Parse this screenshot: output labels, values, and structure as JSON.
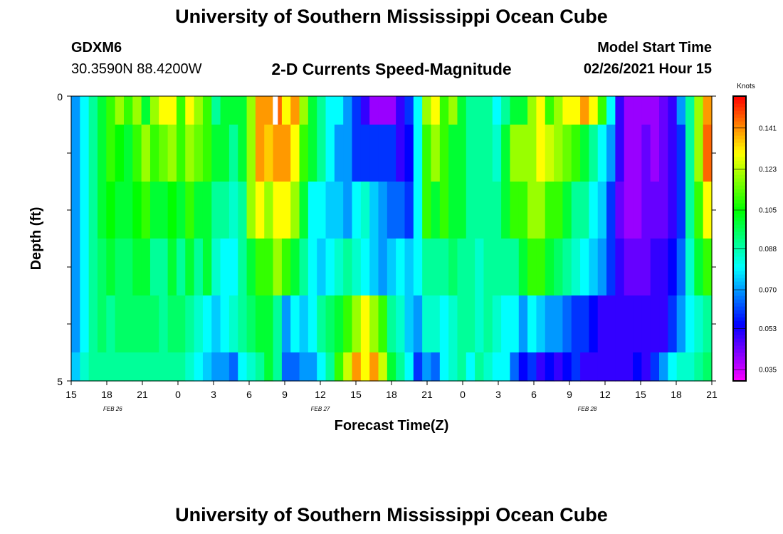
{
  "page": {
    "title_top": "University of Southern Mississippi Ocean Cube",
    "title_bottom": "University of Southern Mississippi Ocean Cube",
    "station_id": "GDXM6",
    "coordinates": "30.3590N 88.4200W",
    "subtitle": "2-D Currents Speed-Magnitude",
    "model_start_label": "Model Start Time",
    "model_start_value": "02/26/2021 Hour 15"
  },
  "chart_data": {
    "type": "heatmap",
    "title": "2-D Currents Speed-Magnitude",
    "xlabel": "Forecast Time(Z)",
    "ylabel": "Depth (ft)",
    "x_ticks": [
      "15",
      "18",
      "21",
      "0",
      "3",
      "6",
      "9",
      "12",
      "15",
      "18",
      "21",
      "0",
      "3",
      "6",
      "9",
      "12",
      "15",
      "18",
      "21"
    ],
    "date_labels": [
      {
        "text": "FEB 26",
        "hour": 3.5
      },
      {
        "text": "FEB 27",
        "hour": 21
      },
      {
        "text": "FEB 28",
        "hour": 43.5
      }
    ],
    "y_tick_labels": {
      "top": "0",
      "bottom": "5"
    },
    "y_range_ft": [
      0,
      5
    ],
    "x_range_hours": [
      0,
      54
    ],
    "colorbar": {
      "unit": "Knots",
      "ticks": [
        0.141,
        0.123,
        0.105,
        0.088,
        0.07,
        0.053,
        0.035
      ],
      "range": [
        0.03,
        0.155
      ]
    },
    "depth_rows": [
      0.5,
      1.5,
      2.5,
      3.5,
      4.5,
      5.0
    ],
    "columns_per_hour": 1,
    "speeds_knots": [
      [
        0.07,
        0.08,
        0.09,
        0.1,
        0.11,
        0.12,
        0.11,
        0.12,
        0.1,
        0.12,
        0.13,
        0.13,
        0.11,
        0.13,
        0.12,
        0.11,
        0.09,
        0.1,
        0.1,
        0.1,
        0.12,
        0.14,
        0.14,
        0.145,
        0.13,
        0.14,
        0.12,
        0.1,
        0.09,
        0.08,
        0.08,
        0.07,
        0.06,
        0.05,
        0.04,
        0.04,
        0.04,
        0.05,
        0.06,
        0.08,
        0.12,
        0.13,
        0.11,
        0.12,
        0.1,
        0.09,
        0.09,
        0.09,
        0.08,
        0.09,
        0.1,
        0.1,
        0.12,
        0.13,
        0.11,
        0.12,
        0.13,
        0.13,
        0.14,
        0.13,
        0.11,
        0.08,
        0.05,
        0.04,
        0.04,
        0.04,
        0.04,
        0.045,
        0.05,
        0.07,
        0.09,
        0.12,
        0.14
      ],
      [
        0.07,
        0.08,
        0.09,
        0.1,
        0.11,
        0.105,
        0.1,
        0.11,
        0.12,
        0.11,
        0.115,
        0.12,
        0.11,
        0.12,
        0.115,
        0.11,
        0.1,
        0.1,
        0.09,
        0.1,
        0.12,
        0.14,
        0.135,
        0.14,
        0.14,
        0.13,
        0.11,
        0.1,
        0.09,
        0.08,
        0.07,
        0.07,
        0.06,
        0.06,
        0.06,
        0.06,
        0.06,
        0.05,
        0.055,
        0.08,
        0.11,
        0.12,
        0.11,
        0.1,
        0.1,
        0.09,
        0.09,
        0.09,
        0.085,
        0.1,
        0.12,
        0.12,
        0.12,
        0.13,
        0.125,
        0.12,
        0.115,
        0.11,
        0.1,
        0.09,
        0.08,
        0.07,
        0.05,
        0.04,
        0.04,
        0.045,
        0.04,
        0.045,
        0.05,
        0.06,
        0.09,
        0.12,
        0.145
      ],
      [
        0.07,
        0.08,
        0.09,
        0.1,
        0.105,
        0.1,
        0.1,
        0.105,
        0.11,
        0.1,
        0.1,
        0.105,
        0.1,
        0.11,
        0.1,
        0.1,
        0.09,
        0.09,
        0.085,
        0.09,
        0.12,
        0.13,
        0.12,
        0.13,
        0.13,
        0.12,
        0.1,
        0.08,
        0.08,
        0.075,
        0.075,
        0.07,
        0.08,
        0.085,
        0.075,
        0.07,
        0.065,
        0.065,
        0.06,
        0.08,
        0.11,
        0.1,
        0.11,
        0.1,
        0.1,
        0.09,
        0.09,
        0.09,
        0.09,
        0.1,
        0.11,
        0.11,
        0.12,
        0.12,
        0.11,
        0.11,
        0.1,
        0.09,
        0.09,
        0.08,
        0.075,
        0.06,
        0.045,
        0.04,
        0.04,
        0.045,
        0.045,
        0.045,
        0.05,
        0.06,
        0.09,
        0.11,
        0.13
      ],
      [
        0.07,
        0.08,
        0.09,
        0.095,
        0.1,
        0.095,
        0.095,
        0.1,
        0.1,
        0.09,
        0.09,
        0.1,
        0.09,
        0.1,
        0.09,
        0.1,
        0.085,
        0.08,
        0.08,
        0.09,
        0.1,
        0.11,
        0.11,
        0.12,
        0.11,
        0.1,
        0.09,
        0.08,
        0.075,
        0.08,
        0.085,
        0.09,
        0.085,
        0.08,
        0.075,
        0.07,
        0.075,
        0.08,
        0.075,
        0.08,
        0.09,
        0.09,
        0.09,
        0.095,
        0.09,
        0.09,
        0.085,
        0.09,
        0.09,
        0.09,
        0.09,
        0.1,
        0.11,
        0.11,
        0.1,
        0.095,
        0.09,
        0.085,
        0.08,
        0.075,
        0.07,
        0.06,
        0.05,
        0.045,
        0.045,
        0.045,
        0.05,
        0.05,
        0.055,
        0.065,
        0.085,
        0.1,
        0.11
      ],
      [
        0.07,
        0.08,
        0.09,
        0.095,
        0.09,
        0.095,
        0.095,
        0.095,
        0.095,
        0.095,
        0.09,
        0.095,
        0.095,
        0.09,
        0.085,
        0.08,
        0.075,
        0.08,
        0.085,
        0.09,
        0.095,
        0.1,
        0.1,
        0.09,
        0.07,
        0.08,
        0.075,
        0.08,
        0.09,
        0.095,
        0.1,
        0.11,
        0.12,
        0.13,
        0.12,
        0.11,
        0.09,
        0.085,
        0.075,
        0.07,
        0.085,
        0.085,
        0.08,
        0.085,
        0.09,
        0.09,
        0.085,
        0.09,
        0.085,
        0.08,
        0.08,
        0.07,
        0.08,
        0.075,
        0.07,
        0.07,
        0.065,
        0.06,
        0.06,
        0.055,
        0.05,
        0.05,
        0.05,
        0.05,
        0.05,
        0.05,
        0.05,
        0.05,
        0.06,
        0.07,
        0.08,
        0.085,
        0.09
      ],
      [
        0.075,
        0.085,
        0.09,
        0.09,
        0.09,
        0.09,
        0.09,
        0.09,
        0.09,
        0.09,
        0.09,
        0.09,
        0.09,
        0.085,
        0.08,
        0.075,
        0.07,
        0.07,
        0.065,
        0.08,
        0.085,
        0.09,
        0.1,
        0.09,
        0.065,
        0.065,
        0.07,
        0.07,
        0.08,
        0.09,
        0.11,
        0.125,
        0.14,
        0.13,
        0.14,
        0.125,
        0.1,
        0.09,
        0.08,
        0.06,
        0.07,
        0.065,
        0.08,
        0.085,
        0.09,
        0.08,
        0.09,
        0.085,
        0.08,
        0.08,
        0.065,
        0.055,
        0.06,
        0.05,
        0.055,
        0.05,
        0.055,
        0.06,
        0.05,
        0.05,
        0.05,
        0.05,
        0.05,
        0.05,
        0.055,
        0.05,
        0.06,
        0.07,
        0.08,
        0.085,
        0.085,
        0.09,
        0.095
      ]
    ],
    "missing_cell": {
      "hour": 17,
      "row": 0
    }
  }
}
